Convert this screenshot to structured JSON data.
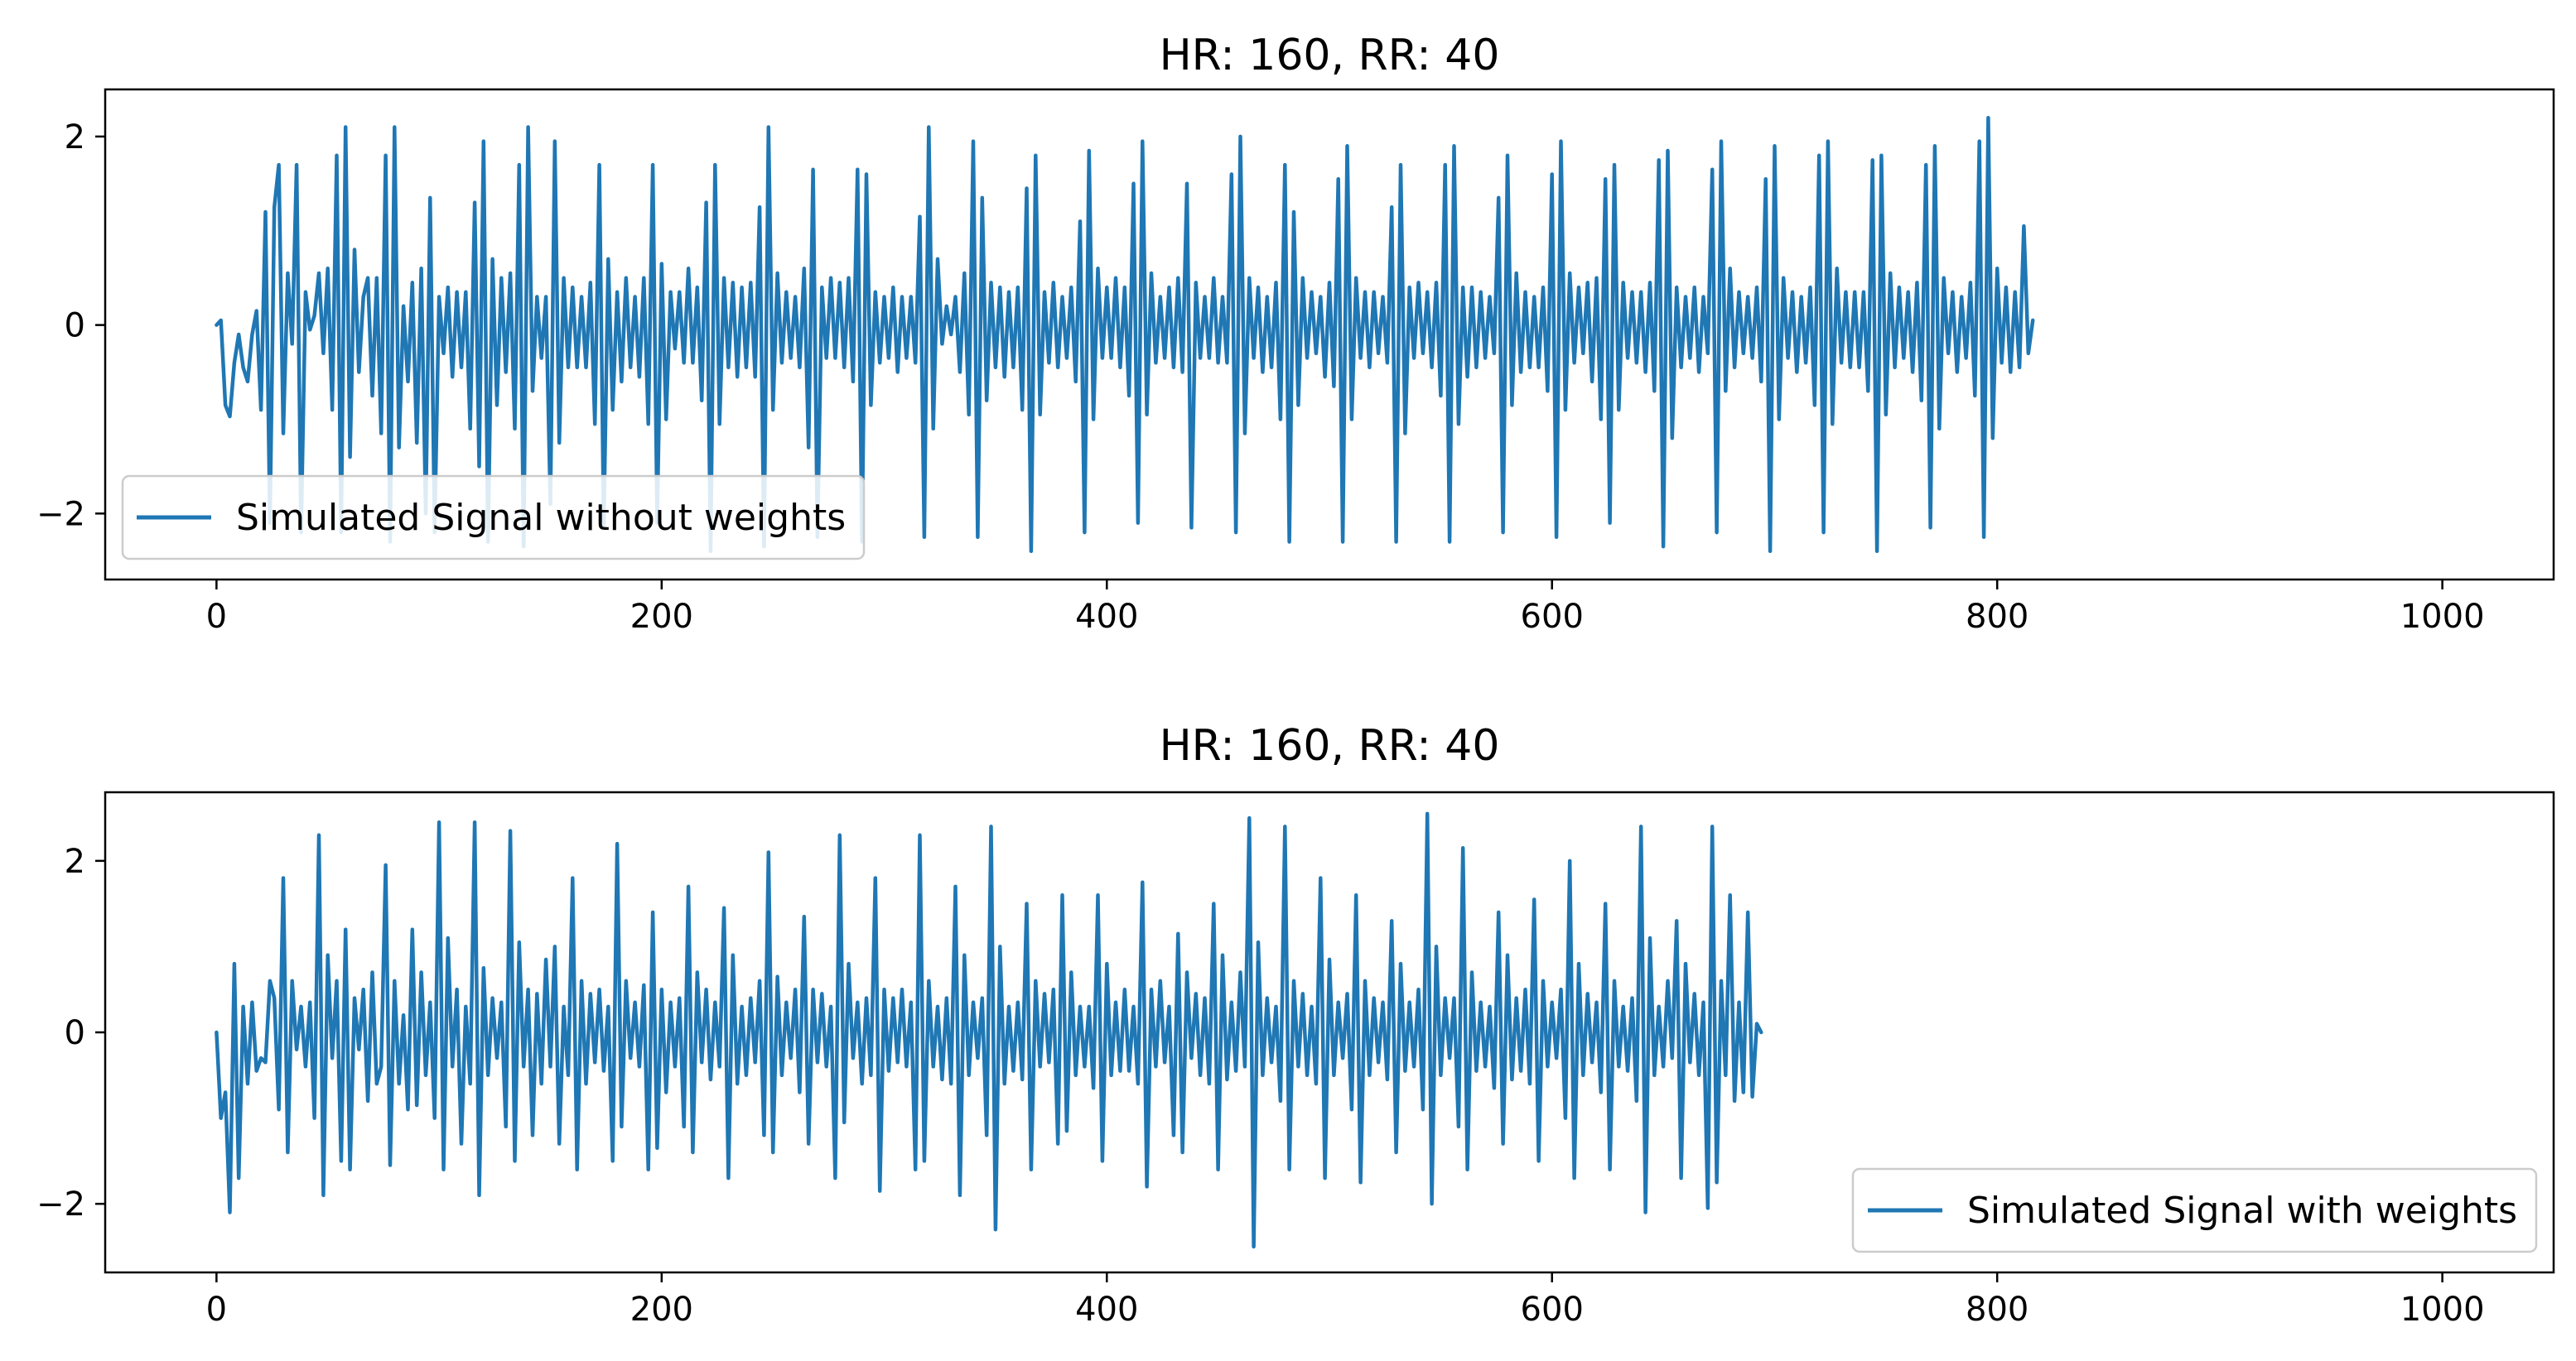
{
  "chart_data": [
    {
      "type": "line",
      "title": "HR: 160, RR: 40",
      "xlabel": "",
      "ylabel": "",
      "xlim": [
        -50,
        1050
      ],
      "ylim": [
        -2.7,
        2.5
      ],
      "xticks": [
        0,
        200,
        400,
        600,
        800,
        1000
      ],
      "xtick_labels": [
        "0",
        "200",
        "400",
        "600",
        "800",
        "1000"
      ],
      "yticks": [
        -2,
        0,
        2
      ],
      "ytick_labels": [
        "−2",
        "0",
        "2"
      ],
      "grid": false,
      "legend_position": "lower-left",
      "series": [
        {
          "name": "Simulated Signal without weights",
          "color": "#1f77b4",
          "x_start": 0,
          "x_step": 2,
          "values": [
            0,
            0.05,
            -0.85,
            -0.97,
            -0.4,
            -0.1,
            -0.45,
            -0.6,
            -0.1,
            0.15,
            -0.9,
            1.2,
            -2.1,
            1.25,
            1.7,
            -1.15,
            0.55,
            -0.2,
            1.7,
            -2.2,
            0.35,
            -0.05,
            0.1,
            0.55,
            -0.3,
            0.6,
            -0.9,
            1.8,
            -2.2,
            2.1,
            -1.4,
            0.8,
            -0.5,
            0.3,
            0.5,
            -0.75,
            0.5,
            -1.15,
            1.8,
            -2.3,
            2.1,
            -1.3,
            0.2,
            -0.6,
            0.45,
            -1.25,
            0.6,
            -2.0,
            1.35,
            -2.2,
            0.3,
            -0.3,
            0.4,
            -0.55,
            0.35,
            -0.45,
            0.35,
            -1.1,
            1.3,
            -1.5,
            1.95,
            -2.3,
            0.7,
            -0.85,
            0.5,
            -0.5,
            0.55,
            -1.1,
            1.7,
            -2.35,
            2.1,
            -0.7,
            0.3,
            -0.35,
            0.3,
            -1.9,
            1.95,
            -1.25,
            0.5,
            -0.45,
            0.4,
            -0.45,
            0.3,
            -0.45,
            0.45,
            -1.05,
            1.7,
            -2.15,
            0.7,
            -0.9,
            0.35,
            -0.6,
            0.5,
            -0.45,
            0.3,
            -0.55,
            0.5,
            -1.05,
            1.7,
            -2.1,
            0.65,
            -1.0,
            0.35,
            -0.25,
            0.35,
            -0.4,
            0.6,
            -0.4,
            0.4,
            -0.8,
            1.3,
            -2.4,
            1.7,
            -1.05,
            0.5,
            -0.45,
            0.45,
            -0.55,
            0.4,
            -0.45,
            0.45,
            -0.55,
            1.25,
            -2.35,
            2.1,
            -0.9,
            0.55,
            -0.4,
            0.35,
            -0.35,
            0.3,
            -0.45,
            0.6,
            -1.3,
            1.65,
            -2.25,
            0.4,
            -0.35,
            0.5,
            -0.35,
            0.45,
            -0.45,
            0.5,
            -0.6,
            1.65,
            -2.3,
            1.6,
            -0.85,
            0.35,
            -0.4,
            0.3,
            -0.35,
            0.4,
            -0.5,
            0.3,
            -0.35,
            0.3,
            -0.4,
            1.15,
            -2.25,
            2.1,
            -1.1,
            0.7,
            -0.2,
            0.2,
            -0.1,
            0.3,
            -0.5,
            0.55,
            -0.95,
            1.95,
            -2.25,
            1.35,
            -0.8,
            0.45,
            -0.45,
            0.4,
            -0.55,
            0.35,
            -0.45,
            0.4,
            -0.9,
            1.45,
            -2.4,
            1.8,
            -0.95,
            0.35,
            -0.4,
            0.45,
            -0.45,
            0.3,
            -0.35,
            0.4,
            -0.6,
            1.1,
            -2.2,
            1.85,
            -1.0,
            0.6,
            -0.35,
            0.4,
            -0.35,
            0.5,
            -0.45,
            0.4,
            -0.75,
            1.5,
            -2.1,
            1.95,
            -0.95,
            0.55,
            -0.4,
            0.3,
            -0.35,
            0.4,
            -0.45,
            0.5,
            -0.5,
            1.5,
            -2.15,
            0.45,
            -0.35,
            0.3,
            -0.35,
            0.5,
            -0.4,
            0.3,
            -0.4,
            1.6,
            -2.2,
            2.0,
            -1.15,
            0.5,
            -0.35,
            0.4,
            -0.5,
            0.3,
            -0.45,
            0.45,
            -1.0,
            1.7,
            -2.3,
            1.2,
            -0.85,
            0.5,
            -0.35,
            0.35,
            -0.3,
            0.3,
            -0.55,
            0.45,
            -0.65,
            1.55,
            -2.3,
            1.9,
            -1.0,
            0.5,
            -0.35,
            0.35,
            -0.45,
            0.35,
            -0.3,
            0.3,
            -0.4,
            1.25,
            -2.3,
            1.7,
            -1.15,
            0.4,
            -0.35,
            0.45,
            -0.3,
            0.35,
            -0.45,
            0.45,
            -0.75,
            1.7,
            -2.3,
            1.9,
            -1.05,
            0.4,
            -0.55,
            0.4,
            -0.45,
            0.35,
            -0.35,
            0.3,
            -0.3,
            1.35,
            -2.2,
            1.8,
            -0.85,
            0.55,
            -0.5,
            0.35,
            -0.45,
            0.3,
            -0.45,
            0.4,
            -0.7,
            1.6,
            -2.25,
            1.95,
            -0.9,
            0.55,
            -0.4,
            0.4,
            -0.3,
            0.45,
            -0.6,
            0.5,
            -1.0,
            1.55,
            -2.1,
            1.7,
            -0.9,
            0.45,
            -0.35,
            0.35,
            -0.4,
            0.35,
            -0.5,
            0.45,
            -0.7,
            1.75,
            -2.35,
            1.85,
            -1.2,
            0.4,
            -0.45,
            0.3,
            -0.35,
            0.4,
            -0.5,
            0.3,
            -0.3,
            1.65,
            -2.2,
            1.95,
            -0.7,
            0.6,
            -0.45,
            0.35,
            -0.3,
            0.3,
            -0.35,
            0.4,
            -0.6,
            1.55,
            -2.4,
            1.9,
            -1.0,
            0.5,
            -0.35,
            0.35,
            -0.5,
            0.3,
            -0.4,
            0.4,
            -0.85,
            1.8,
            -2.2,
            1.95,
            -1.05,
            0.6,
            -0.4,
            0.35,
            -0.45,
            0.35,
            -0.45,
            0.35,
            -0.7,
            1.75,
            -2.4,
            1.8,
            -0.95,
            0.55,
            -0.45,
            0.4,
            -0.35,
            0.35,
            -0.5,
            0.45,
            -0.8,
            1.7,
            -2.15,
            1.9,
            -1.1,
            0.5,
            -0.3,
            0.35,
            -0.5,
            0.3,
            -0.35,
            0.45,
            -0.75,
            1.95,
            -2.25,
            2.2,
            -1.2,
            0.6,
            -0.4,
            0.4,
            -0.5,
            0.35,
            -0.45,
            1.05,
            -0.3,
            0.05
          ]
        }
      ]
    },
    {
      "type": "line",
      "title": "HR: 160, RR: 40",
      "xlabel": "",
      "ylabel": "",
      "xlim": [
        -50,
        1050
      ],
      "ylim": [
        -2.8,
        2.8
      ],
      "xticks": [
        0,
        200,
        400,
        600,
        800,
        1000
      ],
      "xtick_labels": [
        "0",
        "200",
        "400",
        "600",
        "800",
        "1000"
      ],
      "yticks": [
        -2,
        0,
        2
      ],
      "ytick_labels": [
        "−2",
        "0",
        "2"
      ],
      "grid": false,
      "legend_position": "lower-right",
      "series": [
        {
          "name": "Simulated Signal with weights",
          "color": "#1f77b4",
          "x_start": 0,
          "x_step": 2,
          "values": [
            0,
            -1.0,
            -0.7,
            -2.1,
            0.8,
            -1.7,
            0.3,
            -0.6,
            0.35,
            -0.45,
            -0.3,
            -0.35,
            0.6,
            0.4,
            -0.9,
            1.8,
            -1.4,
            0.6,
            -0.2,
            0.3,
            -0.4,
            0.35,
            -1.0,
            2.3,
            -1.9,
            0.9,
            -0.3,
            0.6,
            -1.5,
            1.2,
            -1.6,
            0.4,
            -0.2,
            0.5,
            -0.8,
            0.7,
            -0.6,
            -0.4,
            1.95,
            -1.55,
            0.6,
            -0.6,
            0.2,
            -0.9,
            1.2,
            -0.85,
            0.7,
            -0.5,
            0.35,
            -1.0,
            2.45,
            -1.6,
            1.1,
            -0.4,
            0.5,
            -1.3,
            0.3,
            -0.6,
            2.45,
            -1.9,
            0.75,
            -0.5,
            0.4,
            -0.3,
            0.35,
            -1.1,
            2.35,
            -1.5,
            1.05,
            -0.4,
            0.5,
            -1.2,
            0.45,
            -0.6,
            0.85,
            -0.4,
            1.0,
            -1.3,
            0.3,
            -0.5,
            1.8,
            -1.6,
            0.6,
            -0.6,
            0.45,
            -0.35,
            0.5,
            -0.45,
            0.3,
            -1.5,
            2.2,
            -1.1,
            0.6,
            -0.3,
            0.35,
            -0.4,
            0.55,
            -1.6,
            1.4,
            -1.35,
            0.5,
            -0.7,
            0.35,
            -0.4,
            0.4,
            -1.1,
            1.7,
            -1.4,
            0.7,
            -0.35,
            0.5,
            -0.55,
            0.35,
            -0.4,
            1.45,
            -1.7,
            0.9,
            -0.6,
            0.3,
            -0.5,
            0.4,
            -0.35,
            0.6,
            -1.2,
            2.1,
            -1.4,
            0.65,
            -0.5,
            0.35,
            -0.3,
            0.5,
            -0.7,
            1.35,
            -1.3,
            0.5,
            -0.35,
            0.45,
            -0.4,
            0.3,
            -1.7,
            2.3,
            -1.05,
            0.8,
            -0.3,
            0.35,
            -0.6,
            0.4,
            -0.5,
            1.8,
            -1.85,
            0.5,
            -0.45,
            0.4,
            -0.35,
            0.5,
            -0.4,
            0.35,
            -1.6,
            2.3,
            -1.5,
            0.6,
            -0.4,
            0.3,
            -0.55,
            0.4,
            -0.6,
            1.7,
            -1.9,
            0.9,
            -0.5,
            0.35,
            -0.3,
            0.4,
            -1.2,
            2.4,
            -2.3,
            1.0,
            -0.6,
            0.3,
            -0.45,
            0.35,
            -0.55,
            1.5,
            -1.6,
            0.6,
            -0.4,
            0.45,
            -0.35,
            0.5,
            -1.3,
            1.6,
            -1.15,
            0.7,
            -0.5,
            0.3,
            -0.4,
            0.3,
            -0.65,
            1.6,
            -1.5,
            0.8,
            -0.5,
            0.35,
            -0.45,
            0.5,
            -0.45,
            0.3,
            -0.6,
            1.75,
            -1.8,
            0.5,
            -0.4,
            0.6,
            -0.35,
            0.3,
            -1.2,
            1.15,
            -1.4,
            0.7,
            -0.3,
            0.45,
            -0.5,
            0.4,
            -0.6,
            1.5,
            -1.6,
            0.9,
            -0.55,
            0.35,
            -0.45,
            0.7,
            -0.4,
            2.5,
            -2.5,
            1.05,
            -0.5,
            0.4,
            -0.35,
            0.3,
            -0.8,
            2.4,
            -1.6,
            0.6,
            -0.4,
            0.45,
            -0.5,
            0.3,
            -0.6,
            1.8,
            -1.7,
            0.85,
            -0.5,
            0.35,
            -0.3,
            0.45,
            -0.9,
            1.6,
            -1.75,
            0.6,
            -0.5,
            0.4,
            -0.35,
            0.35,
            -0.55,
            1.3,
            -1.4,
            0.8,
            -0.45,
            0.35,
            -0.4,
            0.5,
            -0.9,
            2.55,
            -2.0,
            1.0,
            -0.5,
            0.4,
            -0.3,
            0.4,
            -1.1,
            2.15,
            -1.6,
            0.7,
            -0.45,
            0.35,
            -0.4,
            0.3,
            -0.65,
            1.4,
            -1.3,
            0.9,
            -0.55,
            0.4,
            -0.45,
            0.5,
            -0.6,
            1.55,
            -1.5,
            0.6,
            -0.4,
            0.35,
            -0.3,
            0.5,
            -1.0,
            2.0,
            -1.7,
            0.8,
            -0.5,
            0.45,
            -0.35,
            0.35,
            -0.7,
            1.5,
            -1.6,
            0.6,
            -0.4,
            0.3,
            -0.45,
            0.4,
            -0.8,
            2.4,
            -2.1,
            1.1,
            -0.5,
            0.3,
            -0.4,
            0.6,
            -0.3,
            1.3,
            -1.7,
            0.8,
            -0.35,
            0.45,
            -0.5,
            0.35,
            -2.05,
            2.4,
            -1.75,
            0.6,
            -0.5,
            1.6,
            -0.8,
            0.35,
            -0.7,
            1.4,
            -0.75,
            0.1,
            0
          ]
        }
      ]
    }
  ]
}
